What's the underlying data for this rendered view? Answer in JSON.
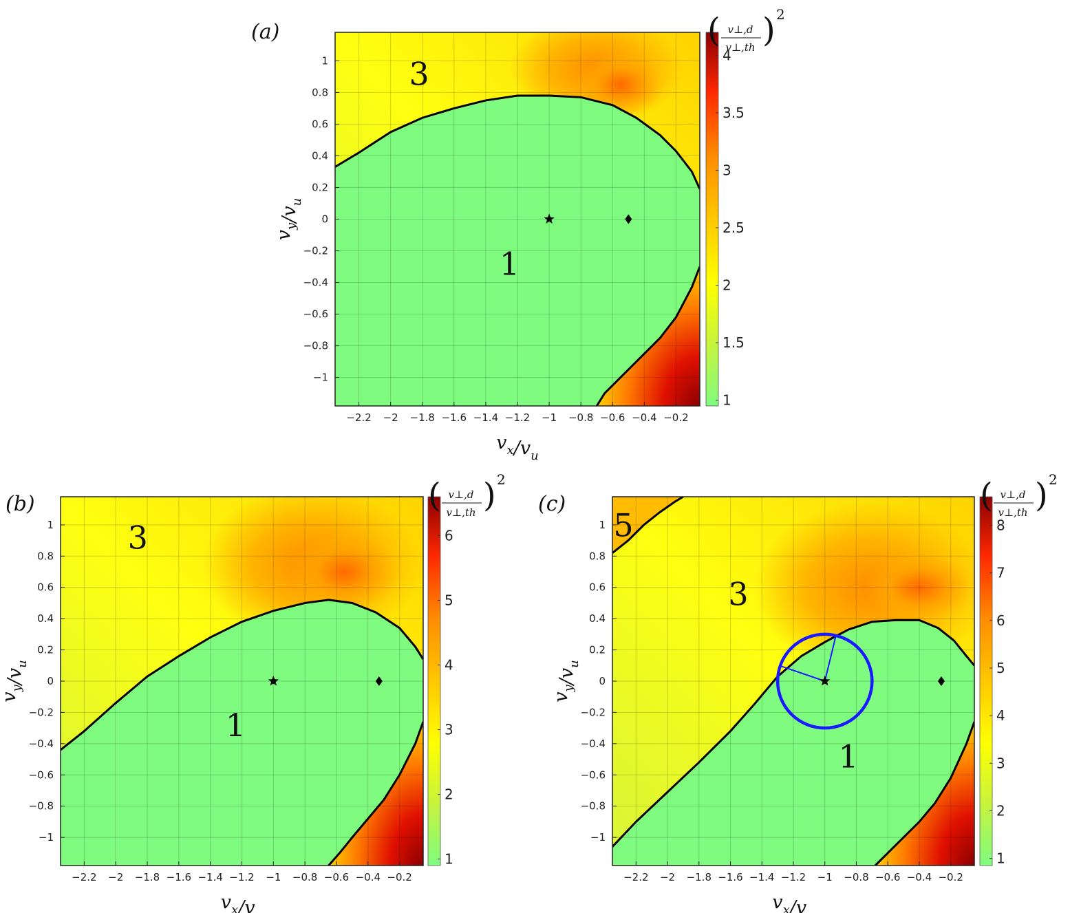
{
  "colors": {
    "region1": "#7ffc7f",
    "colormap": [
      "#7ffc7f",
      "#c8f43c",
      "#ffff00",
      "#ffc800",
      "#ff8c00",
      "#ff2800",
      "#8b0000"
    ],
    "boundary": "#000000",
    "circle": "#1a1aff"
  },
  "chart_data": [
    {
      "type": "heatmap",
      "panel_label": "(a)",
      "xlabel": "v_x/v_u",
      "ylabel": "v_y/v_u",
      "xlim": [
        -2.35,
        -0.05
      ],
      "ylim": [
        -1.18,
        1.18
      ],
      "xticks": [
        -2.2,
        -2,
        -1.8,
        -1.6,
        -1.4,
        -1.2,
        -1,
        -0.8,
        -0.6,
        -0.4,
        -0.2
      ],
      "xtick_labels": [
        "−2.2",
        "−2",
        "−1.8",
        "−1.6",
        "−1.4",
        "−1.2",
        "−1",
        "−0.8",
        "−0.6",
        "−0.4",
        "−0.2"
      ],
      "yticks": [
        1,
        0.8,
        0.6,
        0.4,
        0.2,
        0,
        -0.2,
        -0.4,
        -0.6,
        -0.8,
        -1
      ],
      "ytick_labels": [
        "1",
        "0.8",
        "0.6",
        "0.4",
        "0.2",
        "0",
        "−0.2",
        "−0.4",
        "−0.6",
        "−0.8",
        "−1"
      ],
      "grid": true,
      "colorbar": {
        "title": "(v⊥,d / v⊥,th)^2",
        "range": [
          0.95,
          4.2
        ],
        "ticks": [
          1,
          1.5,
          2,
          2.5,
          3,
          3.5,
          4
        ],
        "tick_labels": [
          "1",
          "1.5",
          "2",
          "2.5",
          "3",
          "3.5",
          "4"
        ]
      },
      "star": [
        -1,
        0
      ],
      "diamond": [
        -0.5,
        0
      ],
      "region_labels": [
        {
          "text": "3",
          "x": -1.82,
          "y": 0.9
        },
        {
          "text": "1",
          "x": -1.25,
          "y": -0.3
        }
      ]
    },
    {
      "type": "heatmap",
      "panel_label": "(b)",
      "xlabel": "v_x/v_u",
      "ylabel": "v_y/v_u",
      "xlim": [
        -2.35,
        -0.05
      ],
      "ylim": [
        -1.18,
        1.18
      ],
      "xticks": [
        -2.2,
        -2,
        -1.8,
        -1.6,
        -1.4,
        -1.2,
        -1,
        -0.8,
        -0.6,
        -0.4,
        -0.2
      ],
      "xtick_labels": [
        "−2.2",
        "−2",
        "−1.8",
        "−1.6",
        "−1.4",
        "−1.2",
        "−1",
        "−0.8",
        "−0.6",
        "−0.4",
        "−0.2"
      ],
      "yticks": [
        1,
        0.8,
        0.6,
        0.4,
        0.2,
        0,
        -0.2,
        -0.4,
        -0.6,
        -0.8,
        -1
      ],
      "ytick_labels": [
        "1",
        "0.8",
        "0.6",
        "0.4",
        "0.2",
        "0",
        "−0.2",
        "−0.4",
        "−0.6",
        "−0.8",
        "−1"
      ],
      "grid": true,
      "colorbar": {
        "title": "(v⊥,d / v⊥,th)^2",
        "range": [
          0.9,
          6.6
        ],
        "ticks": [
          1,
          2,
          3,
          4,
          5,
          6
        ],
        "tick_labels": [
          "1",
          "2",
          "3",
          "4",
          "5",
          "6"
        ]
      },
      "star": [
        -1,
        0
      ],
      "diamond": [
        -0.33,
        0
      ],
      "region_labels": [
        {
          "text": "3",
          "x": -1.86,
          "y": 0.9
        },
        {
          "text": "1",
          "x": -1.24,
          "y": -0.3
        }
      ]
    },
    {
      "type": "heatmap",
      "panel_label": "(c)",
      "xlabel": "v_x/v_u",
      "ylabel": "v_y/v_u",
      "xlim": [
        -2.35,
        -0.05
      ],
      "ylim": [
        -1.18,
        1.18
      ],
      "xticks": [
        -2.2,
        -2,
        -1.8,
        -1.6,
        -1.4,
        -1.2,
        -1,
        -0.8,
        -0.6,
        -0.4,
        -0.2
      ],
      "xtick_labels": [
        "−2.2",
        "−2",
        "−1.8",
        "−1.6",
        "−1.4",
        "−1.2",
        "−1",
        "−0.8",
        "−0.6",
        "−0.4",
        "−0.2"
      ],
      "yticks": [
        1,
        0.8,
        0.6,
        0.4,
        0.2,
        0,
        -0.2,
        -0.4,
        -0.6,
        -0.8,
        -1
      ],
      "ytick_labels": [
        "1",
        "0.8",
        "0.6",
        "0.4",
        "0.2",
        "0",
        "−0.2",
        "−0.4",
        "−0.6",
        "−0.8",
        "−1"
      ],
      "grid": true,
      "colorbar": {
        "title": "(v⊥,d / v⊥,th)^2",
        "range": [
          0.85,
          8.6
        ],
        "ticks": [
          1,
          2,
          3,
          4,
          5,
          6,
          7,
          8
        ],
        "tick_labels": [
          "1",
          "2",
          "3",
          "4",
          "5",
          "6",
          "7",
          "8"
        ]
      },
      "star": [
        -1,
        0
      ],
      "diamond": [
        -0.26,
        0
      ],
      "circle": {
        "center": [
          -1,
          0
        ],
        "radius": 0.3
      },
      "region_labels": [
        {
          "text": "5",
          "x": -2.28,
          "y": 0.98
        },
        {
          "text": "3",
          "x": -1.55,
          "y": 0.54
        },
        {
          "text": "1",
          "x": -0.85,
          "y": -0.5
        }
      ]
    }
  ]
}
